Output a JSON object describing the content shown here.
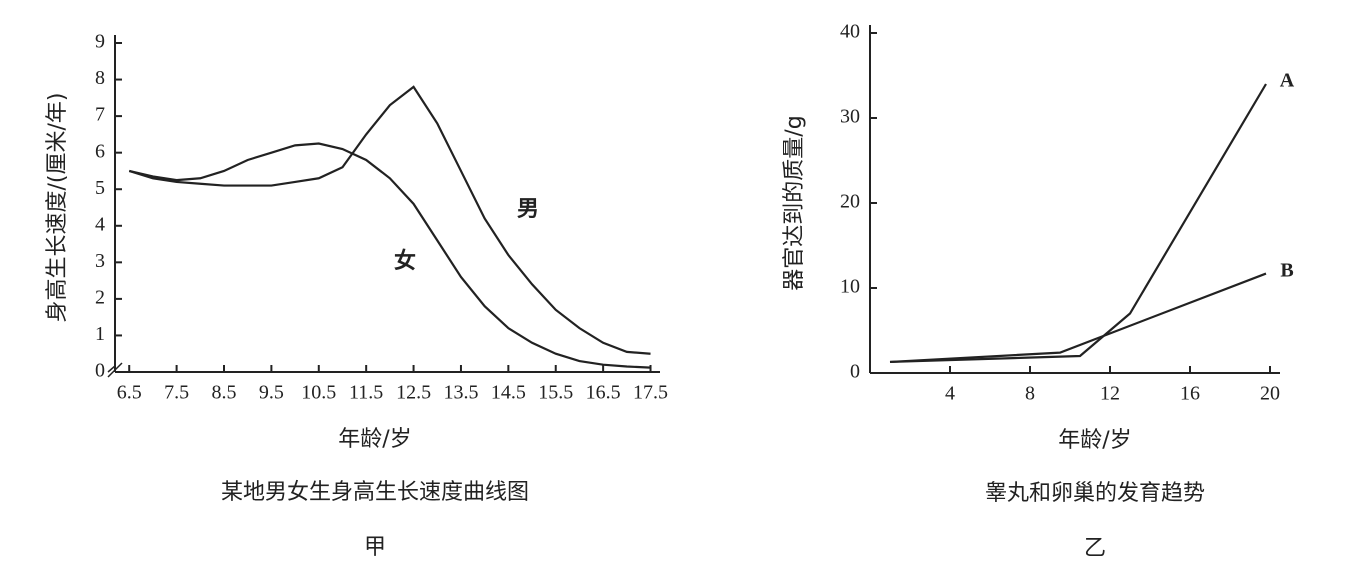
{
  "chart_data": [
    {
      "type": "line",
      "title": "某地男女生身高生长速度曲线图",
      "subtitle": "甲",
      "x_label": "年龄/岁",
      "y_label": "身高生长速度/(厘米/年)",
      "x": [
        6.5,
        7,
        7.5,
        8,
        8.5,
        9,
        9.5,
        10,
        10.5,
        11,
        11.5,
        12,
        12.5,
        13,
        13.5,
        14,
        14.5,
        15,
        15.5,
        16,
        16.5,
        17,
        17.5
      ],
      "series": [
        {
          "name": "男",
          "color": "#222222",
          "values": [
            5.5,
            5.3,
            5.2,
            5.15,
            5.1,
            5.1,
            5.1,
            5.2,
            5.3,
            5.6,
            6.5,
            7.3,
            7.8,
            6.8,
            5.5,
            4.2,
            3.2,
            2.4,
            1.7,
            1.2,
            0.8,
            0.55,
            0.5
          ]
        },
        {
          "name": "女",
          "color": "#222222",
          "values": [
            5.5,
            5.35,
            5.25,
            5.3,
            5.5,
            5.8,
            6.0,
            6.2,
            6.25,
            6.1,
            5.8,
            5.3,
            4.6,
            3.6,
            2.6,
            1.8,
            1.2,
            0.8,
            0.5,
            0.3,
            0.2,
            0.15,
            0.12
          ]
        }
      ],
      "xlim": [
        6.2,
        17.7
      ],
      "xticks": [
        6.5,
        7.5,
        8.5,
        9.5,
        10.5,
        11.5,
        12.5,
        13.5,
        14.5,
        15.5,
        16.5,
        17.5
      ],
      "ylim": [
        0,
        9
      ],
      "yticks": [
        0,
        1,
        2,
        3,
        4,
        5,
        6,
        7,
        8,
        9
      ]
    },
    {
      "type": "line",
      "title": "睾丸和卵巢的发育趋势",
      "subtitle": "乙",
      "x_label": "年龄/岁",
      "y_label": "器官达到的质量/g",
      "series": [
        {
          "name": "A",
          "color": "#222222",
          "x": [
            1,
            10.5,
            13,
            19.8
          ],
          "values": [
            1.3,
            2,
            7,
            34
          ]
        },
        {
          "name": "B",
          "color": "#222222",
          "x": [
            1,
            9.5,
            19.8
          ],
          "values": [
            1.3,
            2.4,
            11.7
          ]
        }
      ],
      "xlim": [
        0,
        20.5
      ],
      "xticks": [
        4,
        8,
        12,
        16,
        20
      ],
      "ylim": [
        0,
        40
      ],
      "yticks": [
        0,
        10,
        20,
        30,
        40
      ]
    }
  ]
}
